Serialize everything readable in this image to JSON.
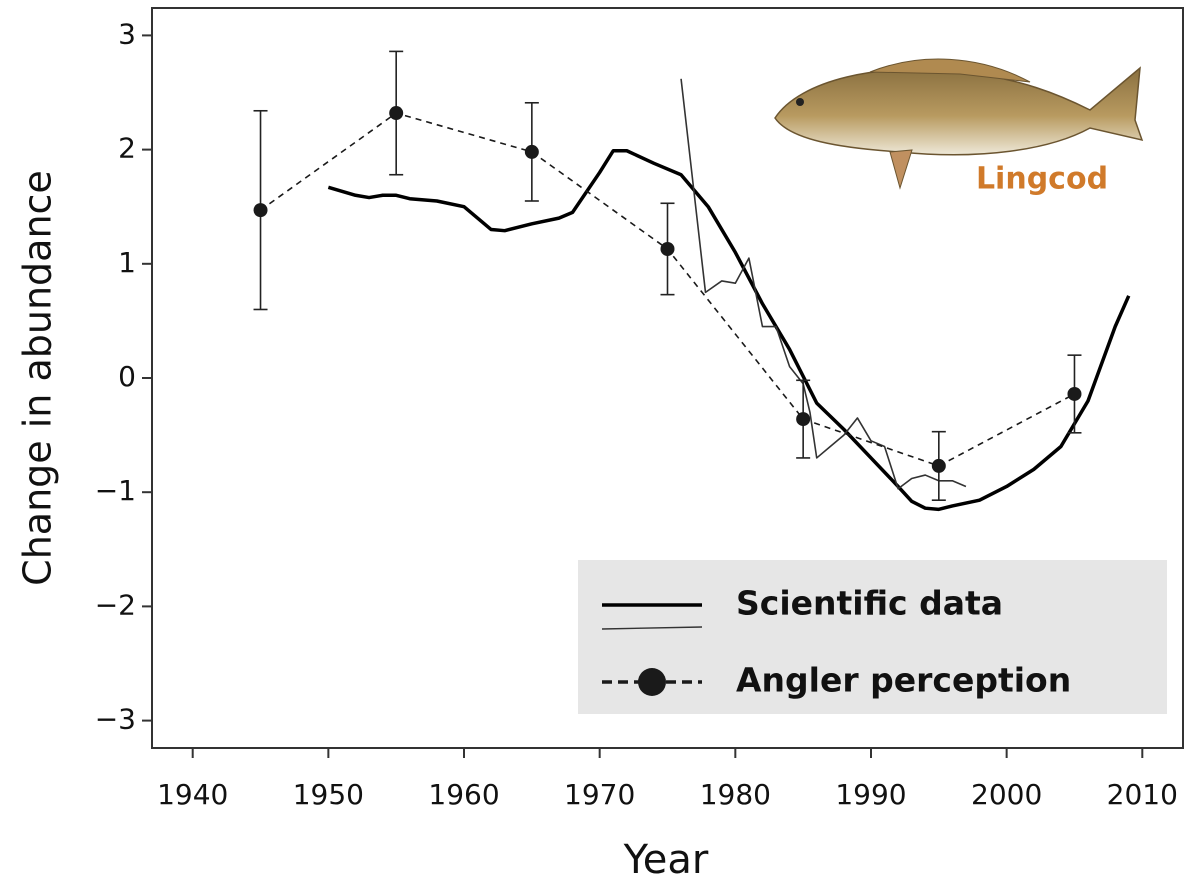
{
  "chart_data": {
    "type": "line",
    "x_label": "Year",
    "y_label": "Change in abundance",
    "annotation": "Lingcod",
    "xlim": [
      1937,
      2013
    ],
    "ylim": [
      -3.24,
      3.24
    ],
    "xticks": [
      1940,
      1950,
      1960,
      1970,
      1980,
      1990,
      2000,
      2010
    ],
    "yticks": [
      {
        "value": -3,
        "label": "−3"
      },
      {
        "value": -2,
        "label": "−2"
      },
      {
        "value": -1,
        "label": "−1"
      },
      0,
      1,
      2,
      3
    ],
    "legend": "bottom-right",
    "series": [
      {
        "name": "Scientific data",
        "color": "#000000",
        "line_style": "solid",
        "x": [
          1950,
          1952,
          1953,
          1954,
          1955,
          1956,
          1958,
          1960,
          1962,
          1963,
          1965,
          1967,
          1968,
          1970,
          1971,
          1972,
          1974,
          1976,
          1978,
          1980,
          1982,
          1984,
          1986,
          1988,
          1990,
          1992,
          1993,
          1994,
          1995,
          1996,
          1998,
          2000,
          2002,
          2004,
          2006,
          2008,
          2009
        ],
        "values": [
          1.67,
          1.6,
          1.58,
          1.6,
          1.6,
          1.57,
          1.55,
          1.5,
          1.3,
          1.29,
          1.35,
          1.4,
          1.45,
          1.8,
          1.99,
          1.99,
          1.88,
          1.78,
          1.5,
          1.1,
          0.65,
          0.25,
          -0.22,
          -0.45,
          -0.7,
          -0.95,
          -1.08,
          -1.14,
          -1.15,
          -1.12,
          -1.07,
          -0.95,
          -0.8,
          -0.6,
          -0.2,
          0.45,
          0.72
        ]
      },
      {
        "color": "#333333",
        "line_style": "solid",
        "x": [
          1976,
          1977.8,
          1979,
          1980,
          1981,
          1982,
          1983,
          1984,
          1985,
          1985.5,
          1986,
          1987,
          1988,
          1989,
          1990,
          1991,
          1992,
          1993,
          1994,
          1995,
          1996,
          1997
        ],
        "values": [
          2.62,
          0.75,
          0.85,
          0.83,
          1.05,
          0.45,
          0.45,
          0.1,
          -0.05,
          -0.3,
          -0.7,
          -0.6,
          -0.5,
          -0.35,
          -0.55,
          -0.6,
          -0.97,
          -0.88,
          -0.85,
          -0.9,
          -0.9,
          -0.95
        ]
      },
      {
        "name": "Angler perception",
        "color": "#1a1a1a",
        "line_style": "dashed",
        "marker": "circle",
        "x": [
          1945,
          1955,
          1965,
          1975,
          1985,
          1995,
          2005
        ],
        "values": [
          1.47,
          2.32,
          1.98,
          1.13,
          -0.36,
          -0.77,
          -0.14
        ],
        "errors": [
          0.87,
          0.54,
          0.43,
          0.4,
          0.34,
          0.3,
          0.34
        ]
      }
    ]
  }
}
